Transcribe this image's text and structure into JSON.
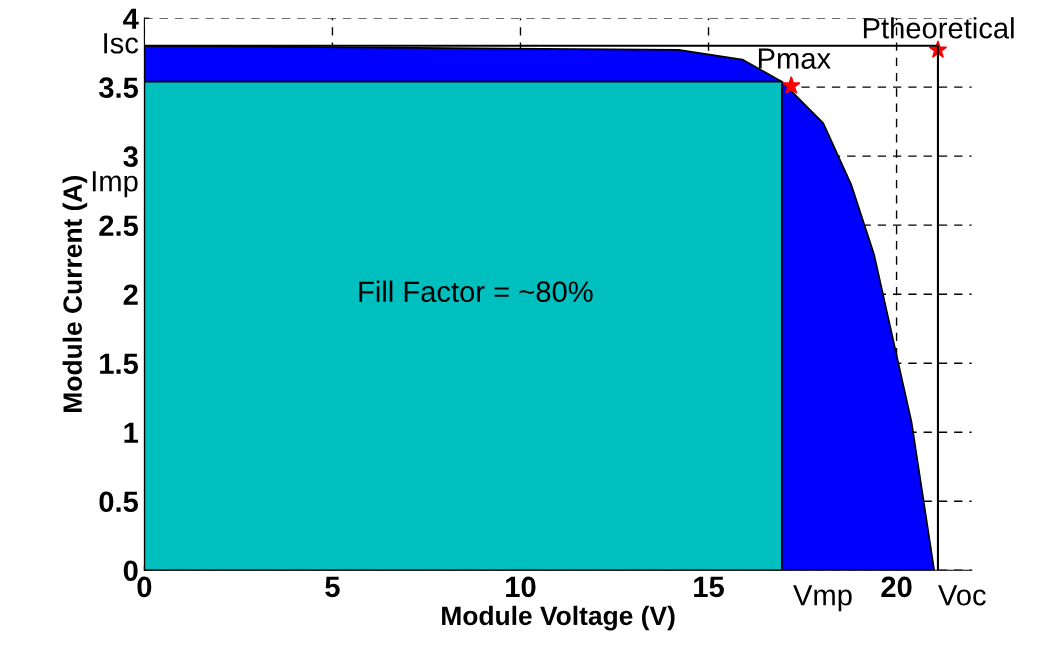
{
  "chart_data": {
    "type": "area",
    "xlabel": "Module Voltage (V)",
    "ylabel": "Module Current (A)",
    "xlim": [
      0,
      22
    ],
    "ylim": [
      0,
      4
    ],
    "xticks": [
      0,
      5,
      10,
      15,
      20
    ],
    "yticks": [
      0,
      0.5,
      1,
      1.5,
      2,
      2.5,
      3,
      3.5,
      4
    ],
    "grid": true,
    "series": [
      {
        "color": "#0000ff",
        "x": [
          0,
          14.2,
          15.9,
          16.95,
          18.05,
          18.8,
          19.4,
          19.95,
          20.4,
          21.0
        ],
        "values": [
          3.8,
          3.77,
          3.7,
          3.54,
          3.24,
          2.79,
          2.29,
          1.62,
          1.07,
          0
        ]
      },
      {
        "color": "#00bfbf",
        "x": [
          0,
          16.95
        ],
        "values": [
          3.54,
          3.54
        ]
      },
      {
        "type": "line",
        "color": "#000000",
        "x": [
          0,
          21.1,
          21.1
        ],
        "values": [
          3.8,
          3.8,
          0
        ]
      },
      {
        "type": "scatter",
        "color": "#ff0000",
        "marker": "star",
        "x": [
          17.2,
          21.1
        ],
        "values": [
          3.51,
          3.77
        ]
      }
    ],
    "annotations": [
      {
        "text": "Isc",
        "x": 0,
        "y": 3.8
      },
      {
        "text": "Imp",
        "x": 0,
        "y": 2.8
      },
      {
        "text": "Vmp",
        "x": 16.95,
        "y": 0
      },
      {
        "text": "Voc",
        "x": 21.1,
        "y": 0
      },
      {
        "text": "Pmax",
        "x": 17.2,
        "y": 3.51
      },
      {
        "text": "Ptheoretical",
        "x": 21.1,
        "y": 3.77
      },
      "Fill Factor = ~80%"
    ]
  }
}
